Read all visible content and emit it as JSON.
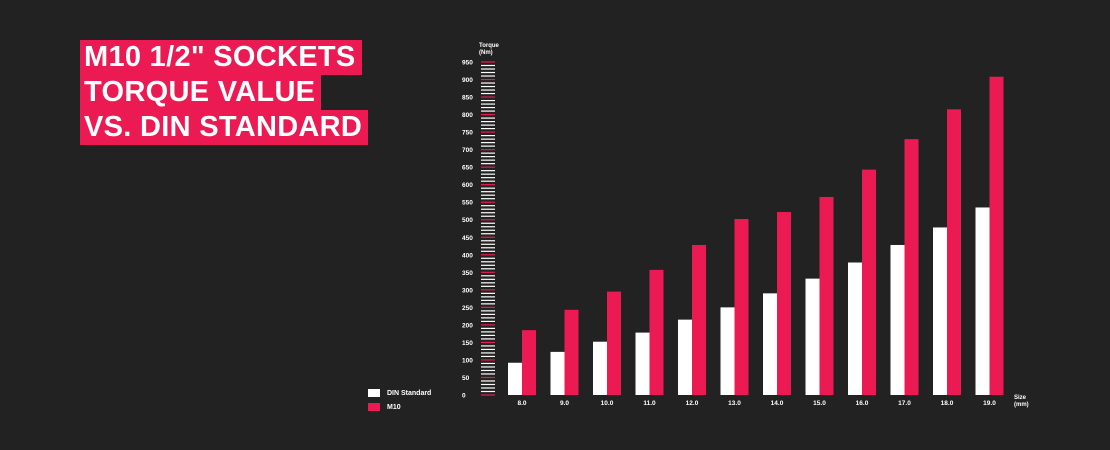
{
  "title_lines": [
    "M10 1/2\" SOCKETS",
    "TORQUE VALUE",
    "VS. DIN STANDARD"
  ],
  "legend": [
    {
      "label": "DIN Standard",
      "color": "#ffffff"
    },
    {
      "label": "M10",
      "color": "#ec1a52"
    }
  ],
  "chart_data": {
    "type": "bar",
    "title": "M10 1/2\" SOCKETS TORQUE VALUE VS. DIN STANDARD",
    "ylabel_lines": [
      "Torque",
      "(Nm)"
    ],
    "xlabel_lines": [
      "Size",
      "(mm)"
    ],
    "ylim": [
      0,
      950
    ],
    "ytick_step": 50,
    "categories": [
      "8.0",
      "9.0",
      "10.0",
      "11.0",
      "12.0",
      "13.0",
      "14.0",
      "15.0",
      "16.0",
      "17.0",
      "18.0",
      "19.0"
    ],
    "series": [
      {
        "name": "DIN Standard",
        "color": "#ffffff",
        "values": [
          92,
          123,
          152,
          178,
          215,
          250,
          290,
          332,
          378,
          428,
          478,
          535
        ]
      },
      {
        "name": "M10",
        "color": "#ec1a52",
        "values": [
          185,
          243,
          295,
          357,
          428,
          502,
          522,
          565,
          643,
          730,
          815,
          908
        ]
      }
    ],
    "grid": false,
    "legend_position": "bottom-left"
  }
}
